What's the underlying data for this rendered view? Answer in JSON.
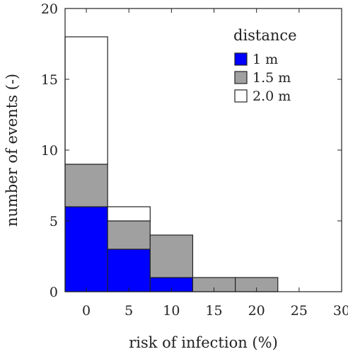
{
  "chart_data": {
    "type": "bar",
    "stacked": true,
    "categories": [
      "0",
      "5",
      "10",
      "15",
      "20",
      "25"
    ],
    "x": [
      0,
      5,
      10,
      15,
      20,
      25
    ],
    "bin_width": 5,
    "series": [
      {
        "name": "1 m",
        "color": "#0000ff",
        "values": [
          6,
          3,
          1,
          0,
          0,
          0
        ]
      },
      {
        "name": "1.5 m",
        "color": "#a0a0a0",
        "values": [
          3,
          2,
          3,
          1,
          1,
          0
        ]
      },
      {
        "name": "2.0 m",
        "color": "#ffffff",
        "values": [
          9,
          1,
          0,
          0,
          0,
          0
        ]
      }
    ],
    "xlabel": "risk of infection (%)",
    "ylabel": "number of events  (-)",
    "xlim": [
      -2.5,
      30
    ],
    "ylim": [
      0,
      20
    ],
    "xticks": [
      0,
      5,
      10,
      15,
      20,
      25,
      30
    ],
    "yticks": [
      0,
      5,
      10,
      15,
      20
    ],
    "grid": false,
    "legend": {
      "title": "distance",
      "placement": "top-right"
    }
  }
}
